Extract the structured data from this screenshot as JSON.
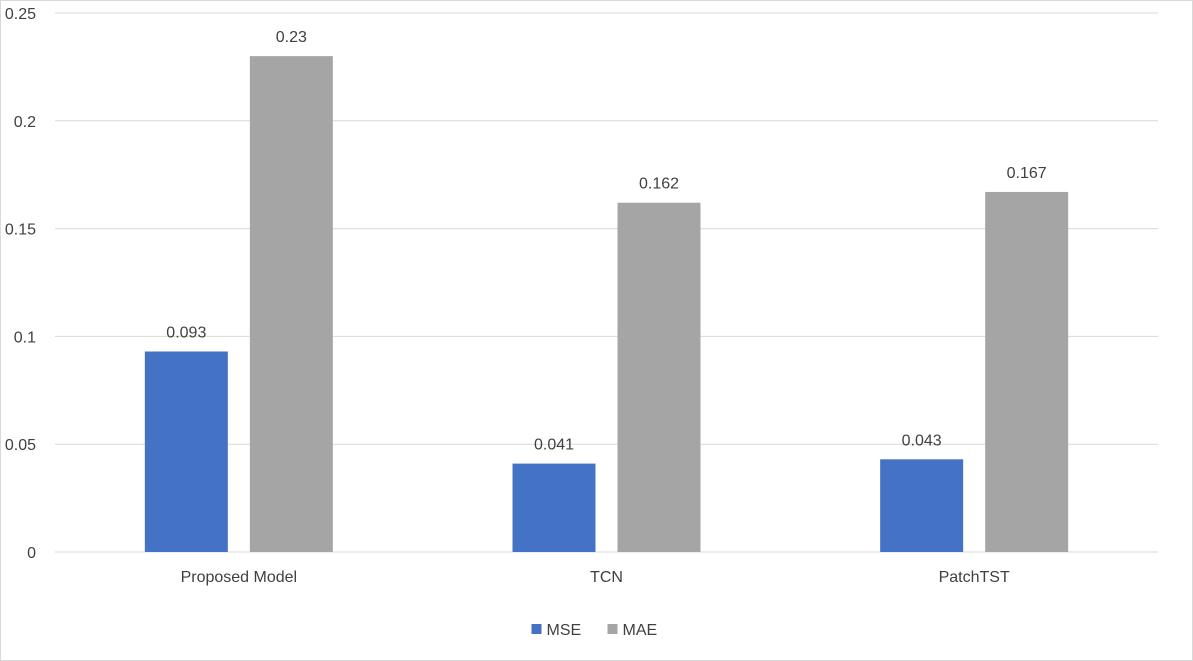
{
  "chart_data": {
    "type": "bar",
    "title": "",
    "xlabel": "",
    "ylabel": "",
    "categories": [
      "Proposed Model",
      "TCN",
      "PatchTST"
    ],
    "series": [
      {
        "name": "MSE",
        "values": [
          0.093,
          0.041,
          0.043
        ],
        "color": "#4472c4"
      },
      {
        "name": "MAE",
        "values": [
          0.23,
          0.162,
          0.167
        ],
        "color": "#a5a5a5"
      }
    ],
    "ylim": [
      0,
      0.25
    ],
    "yticks": [
      "0",
      "0.05",
      "0.1",
      "0.15",
      "0.2",
      "0.25"
    ],
    "data_labels": [
      [
        "0.093",
        "0.041",
        "0.043"
      ],
      [
        "0.23",
        "0.162",
        "0.167"
      ]
    ],
    "grid": true,
    "legend_position": "bottom",
    "gridline_color": "#d9d9d9"
  }
}
